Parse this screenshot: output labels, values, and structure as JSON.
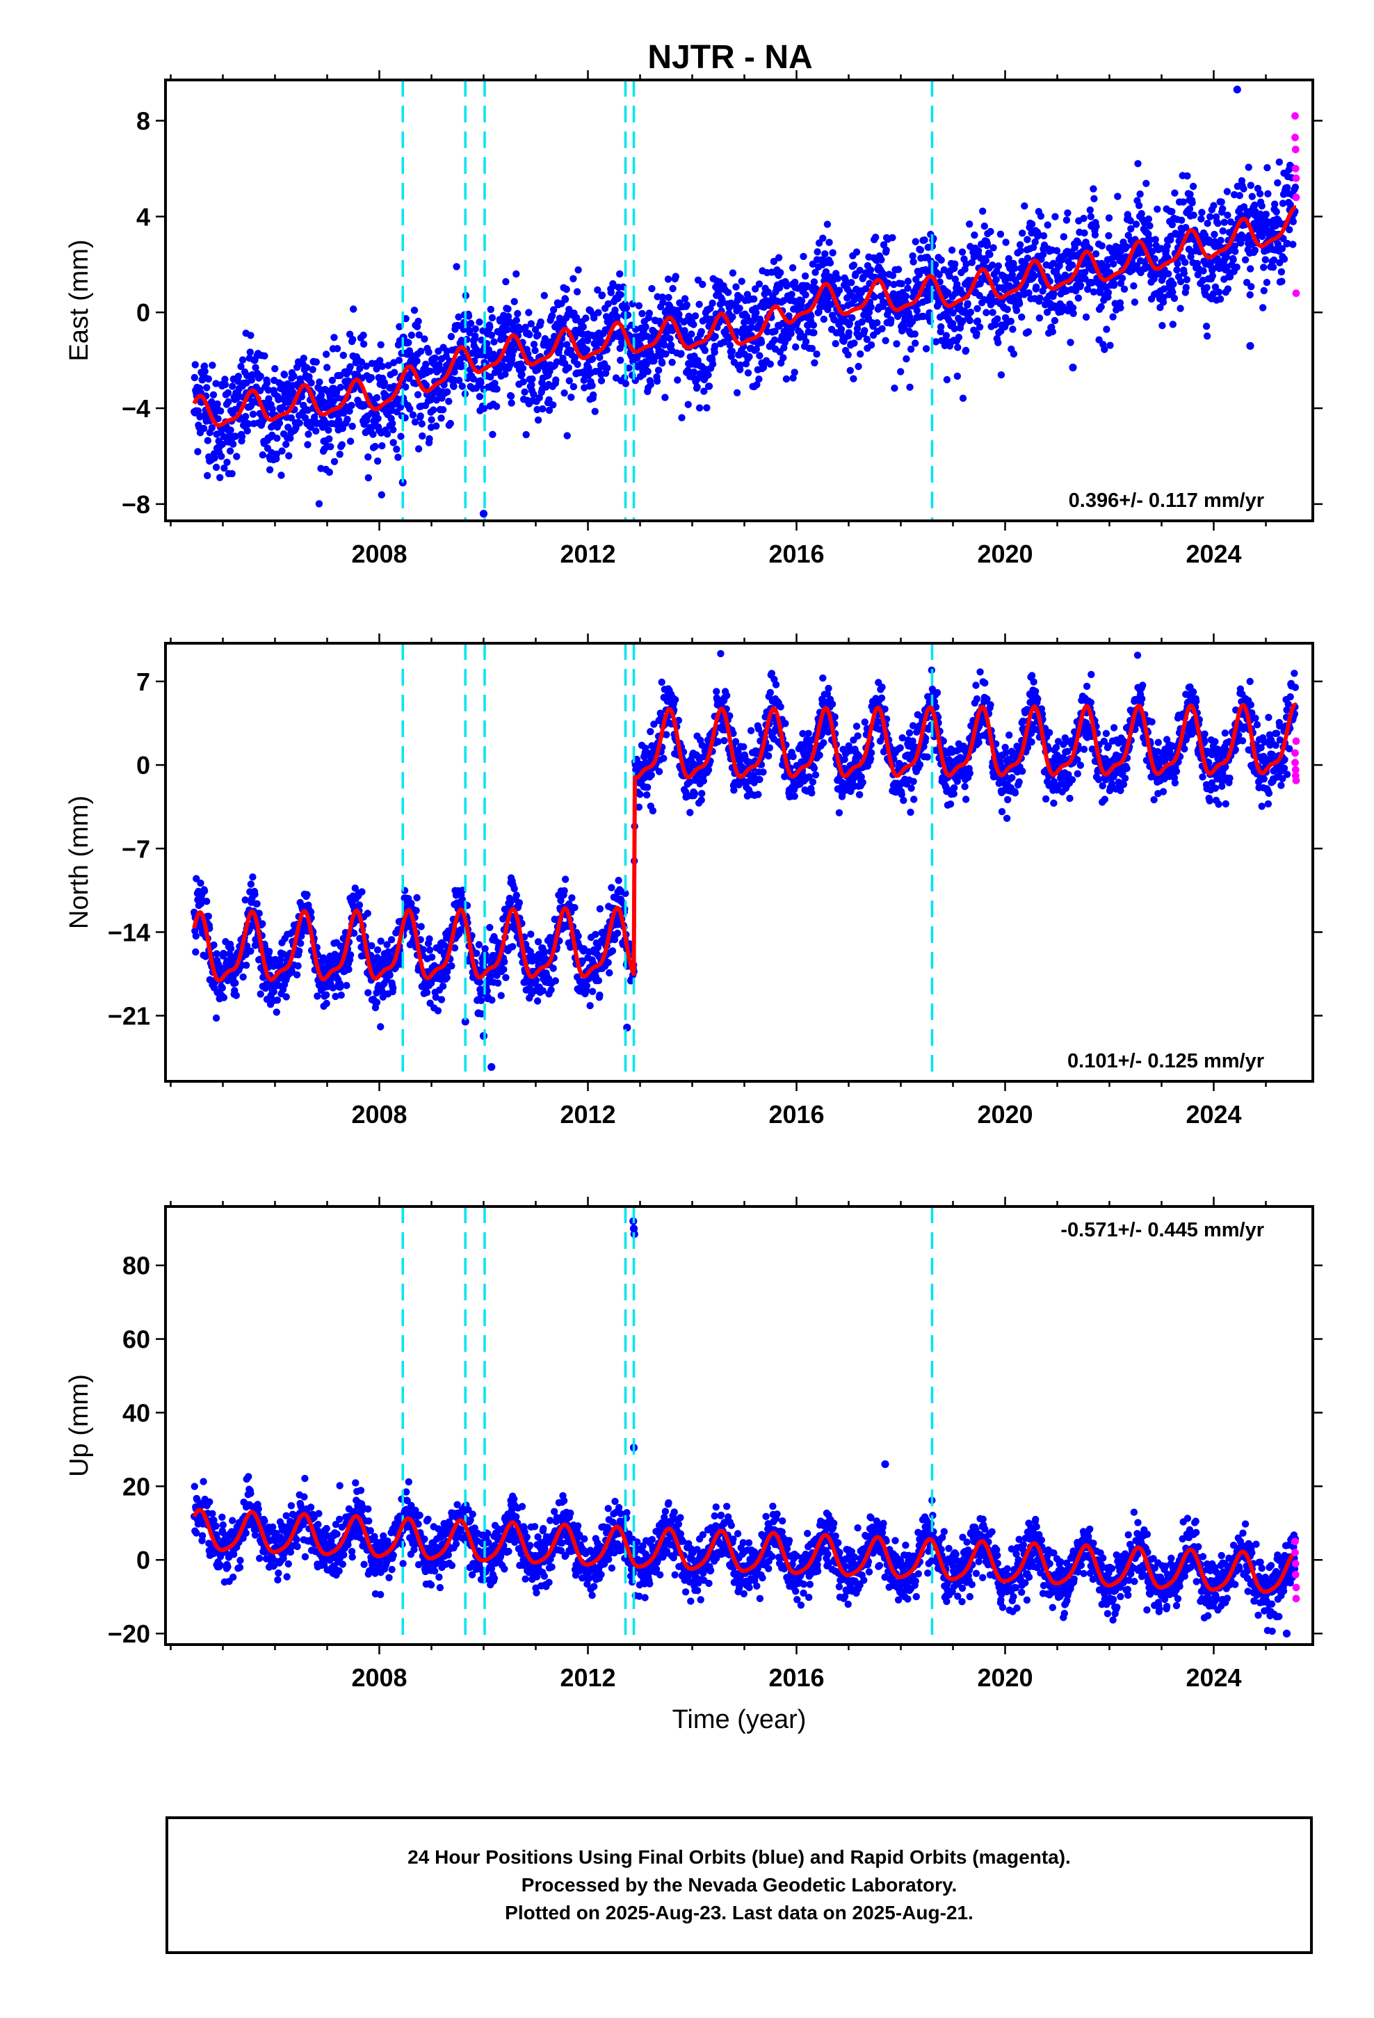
{
  "title": "NJTR - NA",
  "xlabel": "Time (year)",
  "colors": {
    "final_orbits": "#0000ff",
    "rapid_orbits": "#ff00ff",
    "model": "#ff0000",
    "events": "#00e5ee"
  },
  "chart_data": [
    {
      "type": "scatter",
      "panel": "east",
      "ylabel": "East (mm)",
      "rate_text": "0.396+/- 0.117 mm/yr",
      "xlim": [
        2003.9,
        2025.9
      ],
      "ylim": [
        -8.7,
        9.7
      ],
      "yticks": [
        -8,
        -4,
        0,
        4,
        8
      ],
      "xticks": [
        2008,
        2012,
        2016,
        2020,
        2024
      ],
      "grid": false,
      "events": [
        2008.45,
        2009.65,
        2010.02,
        2012.72,
        2012.88,
        2018.6
      ],
      "model": {
        "t0": 2004.45,
        "t_end": 2025.58,
        "knots": [
          [
            2004.45,
            -4.3
          ],
          [
            2008.0,
            -3.5
          ],
          [
            2010.0,
            -1.9
          ],
          [
            2013.0,
            -1.1
          ],
          [
            2015.5,
            -0.7
          ],
          [
            2016.0,
            0.3
          ],
          [
            2019.0,
            0.8
          ],
          [
            2022.0,
            1.9
          ],
          [
            2025.58,
            3.6
          ]
        ],
        "annual_amp": 0.6,
        "semiannual_amp": 0.2,
        "noise_sd": 1.1
      },
      "rapid_points": [
        [
          2025.56,
          8.2
        ],
        [
          2025.56,
          7.3
        ],
        [
          2025.57,
          6.8
        ],
        [
          2025.57,
          6.0
        ],
        [
          2025.58,
          5.6
        ],
        [
          2025.58,
          4.8
        ],
        [
          2025.58,
          0.8
        ]
      ],
      "outliers": [
        [
          2024.45,
          9.3
        ],
        [
          2008.45,
          -7.1
        ],
        [
          2010.0,
          -8.4
        ],
        [
          2024.7,
          -1.4
        ],
        [
          2021.3,
          -2.3
        ]
      ]
    },
    {
      "type": "scatter",
      "panel": "north",
      "ylabel": "North (mm)",
      "rate_text": "0.101+/- 0.125 mm/yr",
      "xlim": [
        2003.9,
        2025.9
      ],
      "ylim": [
        -26.5,
        10.2
      ],
      "yticks": [
        -21,
        -14,
        -7,
        0,
        7
      ],
      "xticks": [
        2008,
        2012,
        2016,
        2020,
        2024
      ],
      "grid": false,
      "events": [
        2008.45,
        2009.65,
        2010.02,
        2012.72,
        2012.88,
        2018.6
      ],
      "model": {
        "t0": 2004.45,
        "t_end": 2025.58,
        "knots": [
          [
            2004.45,
            -15.8
          ],
          [
            2012.88,
            -15.4
          ],
          [
            2012.9,
            1.2
          ],
          [
            2025.58,
            1.6
          ]
        ],
        "annual_amp": 2.6,
        "semiannual_amp": 0.9,
        "noise_sd": 1.3,
        "offset": {
          "t": 2012.88,
          "before": -15.4,
          "after": 1.2
        }
      },
      "rapid_points": [
        [
          2025.56,
          1.0
        ],
        [
          2025.56,
          0.2
        ],
        [
          2025.57,
          -0.4
        ],
        [
          2025.57,
          -0.9
        ],
        [
          2025.58,
          -1.3
        ],
        [
          2025.58,
          2.0
        ]
      ],
      "outliers": [
        [
          2012.75,
          -22.0
        ],
        [
          2009.9,
          -20.8
        ],
        [
          2010.0,
          -22.7
        ],
        [
          2010.15,
          -25.3
        ],
        [
          2009.65,
          -21.5
        ]
      ]
    },
    {
      "type": "scatter",
      "panel": "up",
      "ylabel": "Up (mm)",
      "rate_text": "-0.571+/- 0.445 mm/yr",
      "xlim": [
        2003.9,
        2025.9
      ],
      "ylim": [
        -23,
        96
      ],
      "yticks": [
        -20,
        0,
        20,
        40,
        60,
        80
      ],
      "xticks": [
        2008,
        2012,
        2016,
        2020,
        2024
      ],
      "grid": false,
      "events": [
        2008.45,
        2009.65,
        2010.02,
        2012.72,
        2012.88,
        2018.6
      ],
      "model": {
        "t0": 2004.45,
        "t_end": 2025.58,
        "knots": [
          [
            2004.45,
            7.5
          ],
          [
            2025.58,
            -4.5
          ]
        ],
        "annual_amp": 5.2,
        "semiannual_amp": 1.0,
        "noise_sd": 3.8
      },
      "rapid_points": [
        [
          2025.56,
          5.0
        ],
        [
          2025.56,
          2.0
        ],
        [
          2025.57,
          -1.0
        ],
        [
          2025.57,
          -4.0
        ],
        [
          2025.58,
          -7.5
        ],
        [
          2025.58,
          -10.5
        ]
      ],
      "outliers": [
        [
          2012.87,
          92.0
        ],
        [
          2012.88,
          90.0
        ],
        [
          2012.89,
          88.5
        ],
        [
          2012.88,
          30.5
        ],
        [
          2017.7,
          26.0
        ],
        [
          2025.4,
          -20.0
        ]
      ]
    }
  ],
  "footer": {
    "line1": "24 Hour Positions Using Final Orbits (blue) and Rapid Orbits (magenta).",
    "line2": "Processed by the Nevada Geodetic Laboratory.",
    "line3": "Plotted on 2025-Aug-23. Last data on 2025-Aug-21."
  }
}
